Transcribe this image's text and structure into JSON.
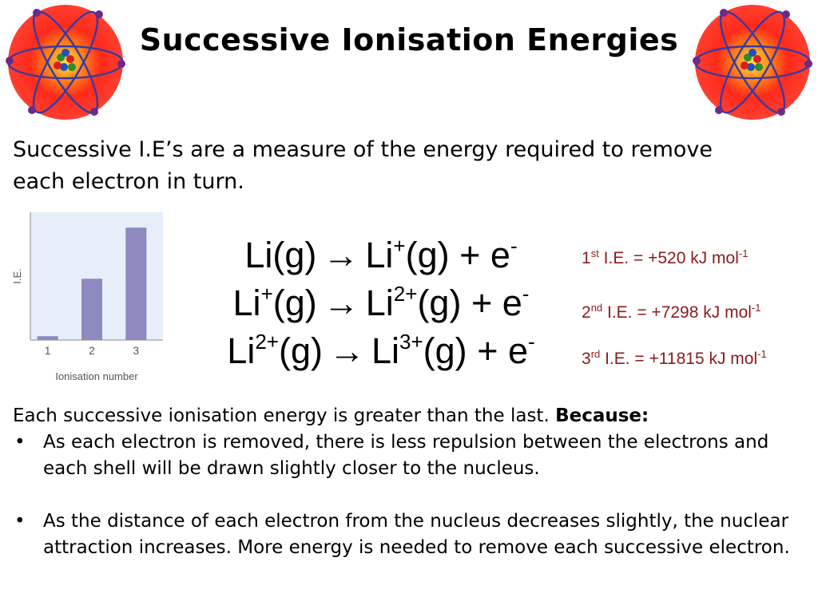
{
  "title": "Successive Ionisation Energies",
  "intro": "Successive I.E’s are a measure of the energy required to remove each electron in turn.",
  "chart_data": {
    "type": "bar",
    "categories": [
      "1",
      "2",
      "3"
    ],
    "values": [
      0.03,
      0.48,
      0.88
    ],
    "xlabel": "Ionisation number",
    "ylabel": "I.E.",
    "ylim": [
      0,
      1
    ],
    "grid": false,
    "bar_color": "#8e8ac0",
    "background": "#e6eefa"
  },
  "equations": [
    {
      "lhs": "Li",
      "lhs_sup": "",
      "state": "(g)",
      "arrow": "→",
      "rhs": "Li",
      "rhs_sup": "+",
      "rhs_state": "(g)",
      "plus": "+",
      "electron": "e",
      "e_sup": "-"
    },
    {
      "lhs": "Li",
      "lhs_sup": "+",
      "state": "(g)",
      "arrow": "→",
      "rhs": "Li",
      "rhs_sup": "2+",
      "rhs_state": "(g)",
      "plus": "+",
      "electron": "e",
      "e_sup": "-"
    },
    {
      "lhs": "Li",
      "lhs_sup": "2+",
      "state": "(g)",
      "arrow": "→",
      "rhs": "Li",
      "rhs_sup": "3+",
      "rhs_state": "(g)",
      "plus": "+",
      "electron": "e",
      "e_sup": "-"
    }
  ],
  "ionisation_energies": [
    {
      "num": "1",
      "suffix": "st",
      "text": " I.E. = +520 kJ mol",
      "unit_sup": "-1"
    },
    {
      "num": "2",
      "suffix": "nd",
      "text": " I.E. = +7298 kJ mol",
      "unit_sup": "-1"
    },
    {
      "num": "3",
      "suffix": "rd",
      "text": " I.E. = +11815 kJ mol",
      "unit_sup": "-1"
    }
  ],
  "ie_color": "#8b1c1c",
  "explanation": {
    "lead": "Each successive ionisation energy is greater than the last. ",
    "because": "Because:",
    "bullet_symbol": "•",
    "bullets": [
      "As each electron is removed, there is less repulsion between the electrons and each shell will be drawn slightly closer to the nucleus.",
      "As the distance of each electron from the nucleus decreases slightly, the nuclear attraction increases. More energy is needed to remove each successive electron."
    ]
  },
  "icons": {
    "decoration": "atom-icon"
  }
}
